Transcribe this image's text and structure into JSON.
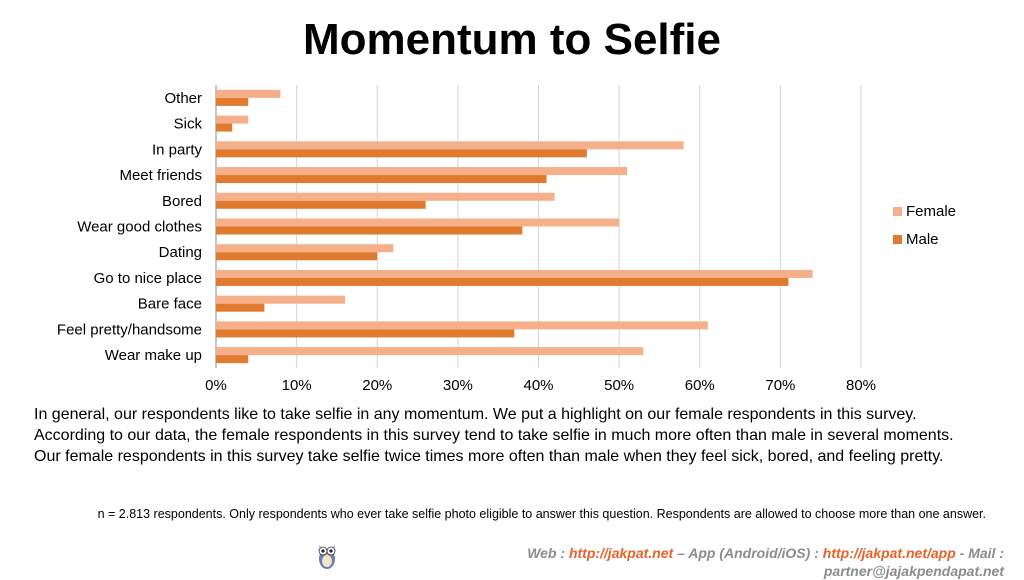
{
  "page": {
    "title": "Momentum to Selfie"
  },
  "chart_data": {
    "type": "bar",
    "orientation": "horizontal",
    "categories": [
      "Other",
      "Sick",
      "In party",
      "Meet friends",
      "Bored",
      "Wear good clothes",
      "Dating",
      "Go to nice place",
      "Bare face",
      "Feel pretty/handsome",
      "Wear make up"
    ],
    "series": [
      {
        "name": "Female",
        "color": "#f5b08a",
        "values": [
          8,
          4,
          58,
          51,
          42,
          50,
          22,
          74,
          16,
          61,
          53
        ]
      },
      {
        "name": "Male",
        "color": "#e07a2e",
        "values": [
          4,
          2,
          46,
          41,
          26,
          38,
          20,
          71,
          6,
          37,
          4
        ]
      }
    ],
    "x_ticks": [
      "0%",
      "10%",
      "20%",
      "30%",
      "40%",
      "50%",
      "60%",
      "70%",
      "80%"
    ],
    "xlim": [
      0,
      80
    ],
    "unit": "%",
    "grid": true,
    "legend_position": "right"
  },
  "description": "In general, our respondents like to take selfie in any momentum. We put a highlight on our female respondents in this survey. According to our data, the female respondents in this survey tend to take selfie in much more often than male in several moments. Our female respondents in this survey take selfie twice times more often than male when they feel sick, bored, and feeling pretty.",
  "note": "n = 2.813 respondents. Only respondents who ever take selfie photo eligible to answer this question. Respondents are allowed to choose more than one answer.",
  "footer": {
    "web_label": "Web :",
    "web_url": "http://jakpat.net",
    "sep1": "– App (Android/iOS) :",
    "app_url": "http://jakpat.net/app",
    "sep2": "- Mail :",
    "mail": "partner@jajakpendapat.net",
    "logo_icon": "owl-logo-icon"
  }
}
